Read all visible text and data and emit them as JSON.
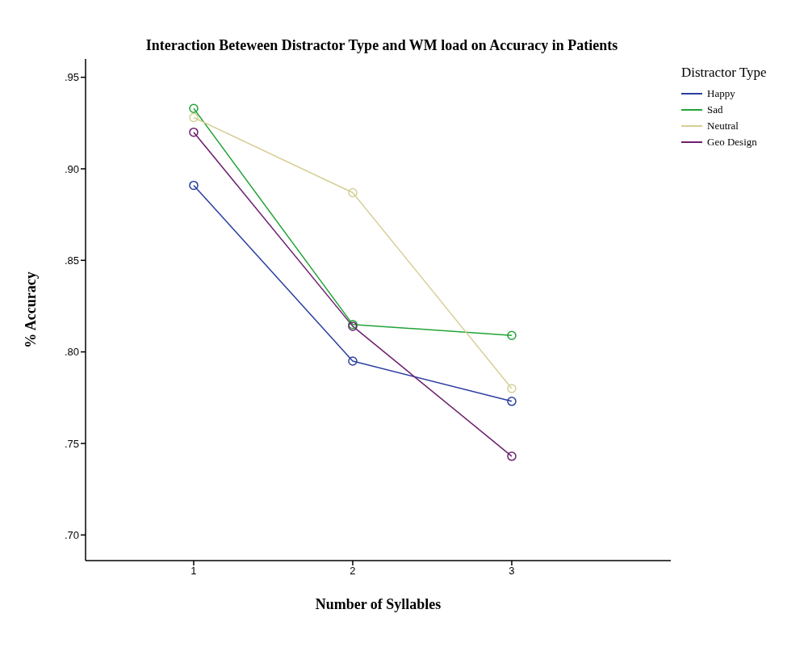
{
  "chart_data": {
    "type": "line",
    "title": "Interaction Beteween Distractor Type and WM load on Accuracy in Patients",
    "xlabel": "Number of Syllables",
    "ylabel": "% Accuracy",
    "legend_title": "Distractor Type",
    "legend": "right",
    "marker": "circle",
    "x": [
      1,
      2,
      3
    ],
    "xlim": [
      0.32,
      4
    ],
    "xticks": [
      1,
      2,
      3
    ],
    "ylim": [
      0.686,
      0.96
    ],
    "yticks": [
      {
        "value": 0.7,
        "label": ".70"
      },
      {
        "value": 0.75,
        "label": ".75"
      },
      {
        "value": 0.8,
        "label": ".80"
      },
      {
        "value": 0.85,
        "label": ".85"
      },
      {
        "value": 0.9,
        "label": ".90"
      },
      {
        "value": 0.95,
        "label": ".95"
      }
    ],
    "series": [
      {
        "name": "Happy",
        "color": "#2a3fa0",
        "values": [
          0.891,
          0.795,
          0.773
        ]
      },
      {
        "name": "Sad",
        "color": "#21a336",
        "values": [
          0.933,
          0.815,
          0.809
        ]
      },
      {
        "name": "Neutral",
        "color": "#d6cf96",
        "values": [
          0.928,
          0.887,
          0.78
        ]
      },
      {
        "name": "Geo Design",
        "color": "#6b1f6e",
        "values": [
          0.92,
          0.814,
          0.743
        ]
      }
    ]
  }
}
